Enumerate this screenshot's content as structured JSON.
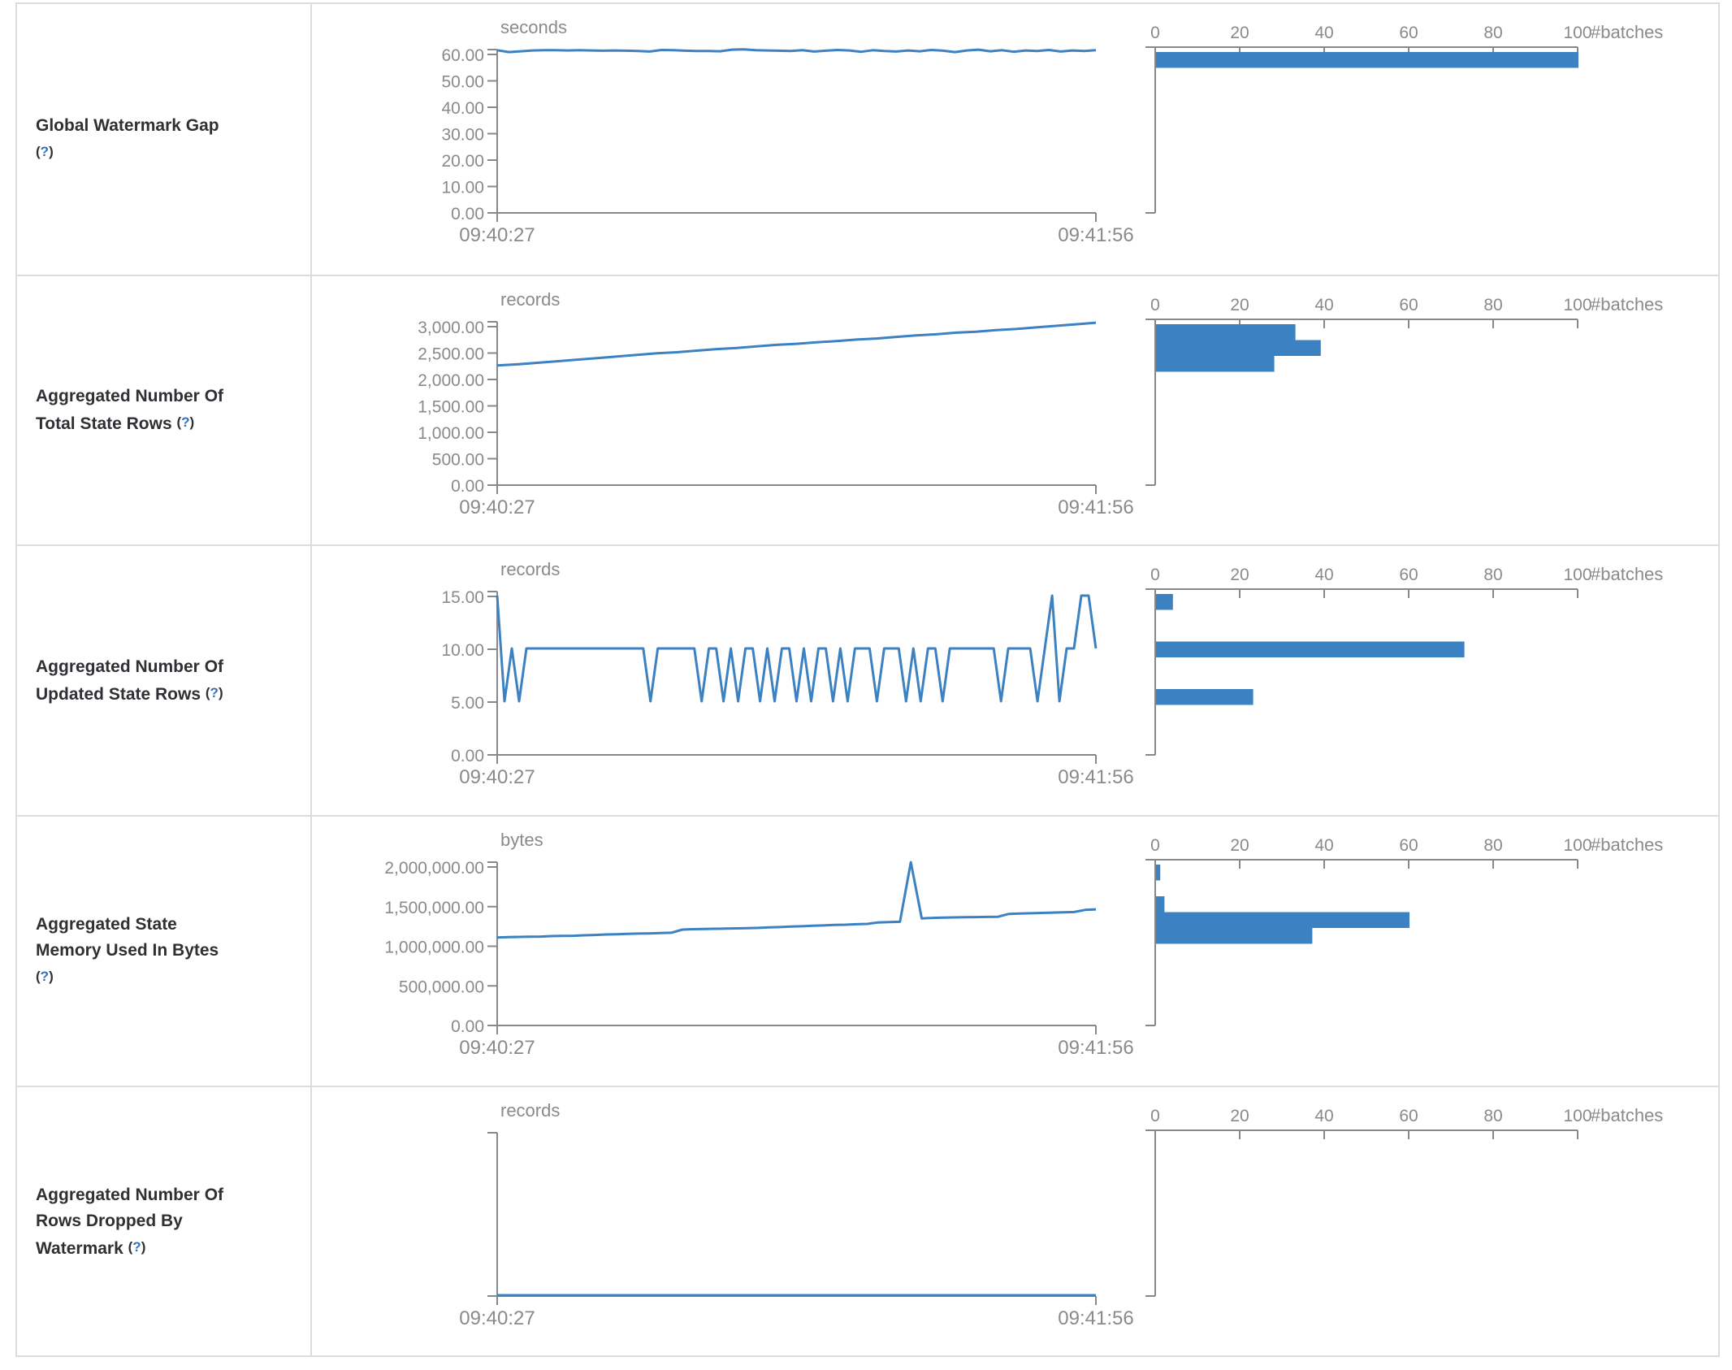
{
  "misc": {
    "lparen": "(",
    "help_q": "?",
    "rparen": ")"
  },
  "table": {
    "rows": [
      {
        "label_lines": [
          "Global Watermark Gap"
        ],
        "help_inline": false
      },
      {
        "label_lines": [
          "Aggregated Number Of",
          "Total State Rows"
        ],
        "help_inline": true
      },
      {
        "label_lines": [
          "Aggregated Number Of",
          "Updated State Rows"
        ],
        "help_inline": true
      },
      {
        "label_lines": [
          "Aggregated State",
          "Memory Used In Bytes"
        ],
        "help_inline": false
      },
      {
        "label_lines": [
          "Aggregated Number Of",
          "Rows Dropped By",
          "Watermark"
        ],
        "help_inline": true
      }
    ]
  },
  "chart_data": [
    {
      "metric": "Global Watermark Gap",
      "timeline": {
        "type": "line",
        "unit": "seconds",
        "x_start": "09:40:27",
        "x_end": "09:41:56",
        "y_ticks": [
          "60.00",
          "50.00",
          "40.00",
          "30.00",
          "20.00",
          "10.00",
          "0.00"
        ],
        "y_axis_max": 60,
        "values": [
          61.3,
          60.6,
          60.9,
          61.2,
          61.3,
          61.3,
          61.2,
          61.3,
          61.2,
          61.1,
          61.2,
          61.1,
          61.0,
          60.8,
          61.4,
          61.3,
          61.1,
          61.0,
          61.0,
          60.9,
          61.5,
          61.6,
          61.3,
          61.2,
          61.1,
          61.0,
          61.3,
          60.8,
          61.1,
          61.4,
          61.2,
          60.7,
          61.3,
          61.0,
          60.8,
          61.2,
          60.9,
          61.4,
          61.1,
          60.6,
          61.2,
          61.5,
          60.9,
          61.3,
          60.7,
          61.2,
          61.0,
          61.4,
          60.8,
          61.2,
          61.0,
          61.3
        ]
      },
      "histogram": {
        "type": "bar",
        "orientation": "horizontal",
        "axis_label": "#batches",
        "x_ticks": [
          "0",
          "20",
          "40",
          "60",
          "80",
          "100"
        ],
        "xlim": [
          0,
          100
        ],
        "bars": [
          {
            "count": 100,
            "slot": 0
          }
        ]
      }
    },
    {
      "metric": "Aggregated Number Of Total State Rows",
      "timeline": {
        "type": "line",
        "unit": "records",
        "x_start": "09:40:27",
        "x_end": "09:41:56",
        "y_ticks": [
          "3,000.00",
          "2,500.00",
          "2,000.00",
          "1,500.00",
          "1,000.00",
          "500.00",
          "0.00"
        ],
        "y_axis_max": 3000,
        "values": [
          2250,
          2270,
          2300,
          2330,
          2360,
          2390,
          2420,
          2450,
          2480,
          2500,
          2530,
          2560,
          2580,
          2610,
          2640,
          2660,
          2690,
          2710,
          2740,
          2760,
          2790,
          2820,
          2840,
          2870,
          2890,
          2920,
          2940,
          2970,
          3000,
          3030,
          3060
        ]
      },
      "histogram": {
        "type": "bar",
        "orientation": "horizontal",
        "axis_label": "#batches",
        "x_ticks": [
          "0",
          "20",
          "40",
          "60",
          "80",
          "100"
        ],
        "xlim": [
          0,
          100
        ],
        "bars": [
          {
            "count": 33,
            "slot": 0
          },
          {
            "count": 39,
            "slot": 1
          },
          {
            "count": 28,
            "slot": 2
          }
        ]
      }
    },
    {
      "metric": "Aggregated Number Of Updated State Rows",
      "timeline": {
        "type": "line",
        "unit": "records",
        "x_start": "09:40:27",
        "x_end": "09:41:56",
        "y_ticks": [
          "15.00",
          "10.00",
          "5.00",
          "0.00"
        ],
        "y_axis_max": 15,
        "values": [
          15,
          5,
          10,
          5,
          10,
          10,
          10,
          10,
          10,
          10,
          10,
          10,
          10,
          10,
          10,
          10,
          10,
          10,
          10,
          10,
          10,
          5,
          10,
          10,
          10,
          10,
          10,
          10,
          5,
          10,
          10,
          5,
          10,
          5,
          10,
          10,
          5,
          10,
          5,
          10,
          10,
          5,
          10,
          5,
          10,
          10,
          5,
          10,
          5,
          10,
          10,
          10,
          5,
          10,
          10,
          10,
          5,
          10,
          5,
          10,
          10,
          5,
          10,
          10,
          10,
          10,
          10,
          10,
          10,
          5,
          10,
          10,
          10,
          10,
          5,
          10,
          15,
          5,
          10,
          10,
          15,
          15,
          10
        ]
      },
      "histogram": {
        "type": "bar",
        "orientation": "horizontal",
        "axis_label": "#batches",
        "x_ticks": [
          "0",
          "20",
          "40",
          "60",
          "80",
          "100"
        ],
        "xlim": [
          0,
          100
        ],
        "bars": [
          {
            "count": 4,
            "slot": 0
          },
          {
            "count": 73,
            "slot": 3
          },
          {
            "count": 23,
            "slot": 6
          }
        ]
      }
    },
    {
      "metric": "Aggregated State Memory Used In Bytes",
      "timeline": {
        "type": "line",
        "unit": "bytes",
        "x_start": "09:40:27",
        "x_end": "09:41:56",
        "y_ticks": [
          "2,000,000.00",
          "1,500,000.00",
          "1,000,000.00",
          "500,000.00",
          "0.00"
        ],
        "y_axis_max": 2000000,
        "values": [
          1100000,
          1105000,
          1108000,
          1110000,
          1112000,
          1118000,
          1120000,
          1122000,
          1128000,
          1132000,
          1138000,
          1142000,
          1146000,
          1150000,
          1152000,
          1156000,
          1160000,
          1200000,
          1205000,
          1208000,
          1210000,
          1212000,
          1215000,
          1218000,
          1222000,
          1228000,
          1232000,
          1238000,
          1242000,
          1248000,
          1252000,
          1258000,
          1262000,
          1268000,
          1272000,
          1290000,
          1294000,
          1298000,
          2050000,
          1340000,
          1348000,
          1352000,
          1354000,
          1356000,
          1358000,
          1360000,
          1362000,
          1398000,
          1402000,
          1406000,
          1410000,
          1414000,
          1418000,
          1422000,
          1448000,
          1455000
        ]
      },
      "histogram": {
        "type": "bar",
        "orientation": "horizontal",
        "axis_label": "#batches",
        "x_ticks": [
          "0",
          "20",
          "40",
          "60",
          "80",
          "100"
        ],
        "xlim": [
          0,
          100
        ],
        "bars": [
          {
            "count": 1,
            "slot": 0
          },
          {
            "count": 2,
            "slot": 2
          },
          {
            "count": 60,
            "slot": 3
          },
          {
            "count": 37,
            "slot": 4
          }
        ]
      }
    },
    {
      "metric": "Aggregated Number Of Rows Dropped By Watermark",
      "timeline": {
        "type": "line",
        "unit": "records",
        "x_start": "09:40:27",
        "x_end": "09:41:56",
        "y_ticks": [],
        "y_axis_max": 1,
        "values": [
          0,
          0,
          0,
          0,
          0,
          0,
          0,
          0,
          0,
          0,
          0,
          0,
          0,
          0,
          0,
          0,
          0,
          0,
          0,
          0
        ]
      },
      "histogram": {
        "type": "bar",
        "orientation": "horizontal",
        "axis_label": "#batches",
        "x_ticks": [
          "0",
          "20",
          "40",
          "60",
          "80",
          "100"
        ],
        "xlim": [
          0,
          100
        ],
        "bars": []
      }
    }
  ]
}
